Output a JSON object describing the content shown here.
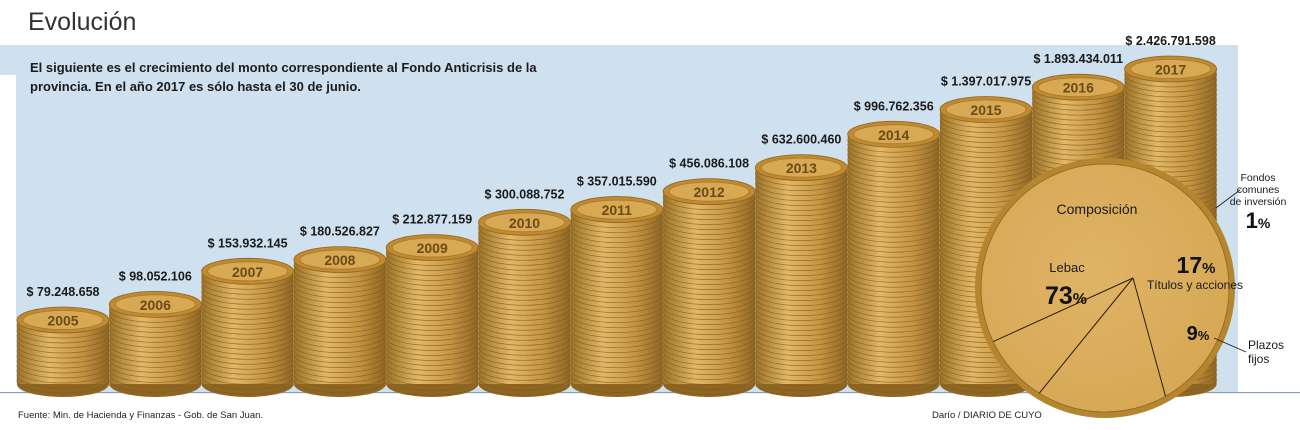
{
  "title": "Evolución",
  "intro": "El siguiente es el crecimiento del monto correspondiente al Fondo Anticrisis de la provincia. En el año 2017 es sólo hasta el 30 de junio.",
  "source": "Fuente: Min. de Hacienda y Finanzas - Gob. de San Juan.",
  "credit": "Darío / DIARIO DE CUYO",
  "colors": {
    "background_panel": "#cfe0ef",
    "coin_face": "#d8a954",
    "coin_rim": "#c08a30",
    "coin_edge": "#b98a3c",
    "pie": "#d6a855"
  },
  "chart_data": [
    {
      "type": "bar",
      "title": "Evolución",
      "categories": [
        "2005",
        "2006",
        "2007",
        "2008",
        "2009",
        "2010",
        "2011",
        "2012",
        "2013",
        "2014",
        "2015",
        "2016",
        "2017"
      ],
      "value_labels": [
        "$ 79.248.658",
        "$ 98.052.106",
        "$ 153.932.145",
        "$ 180.526.827",
        "$ 212.877.159",
        "$ 300.088.752",
        "$ 357.015.590",
        "$ 456.086.108",
        "$ 632.600.460",
        "$ 996.762.356",
        "$ 1.397.017.975",
        "$ 1.893.434.011",
        "$ 2.426.791.598"
      ],
      "values": [
        79248658,
        98052106,
        153932145,
        180526827,
        212877159,
        300088752,
        357015590,
        456086108,
        632600460,
        996762356,
        1397017975,
        1893434011,
        2426791598
      ]
    },
    {
      "type": "pie",
      "title": "Composición",
      "slices": [
        {
          "name": "Lebac",
          "pct_label": "73",
          "value": 73
        },
        {
          "name": "Títulos y acciones",
          "pct_label": "17",
          "value": 17
        },
        {
          "name": "Plazos fijos",
          "pct_label": "9",
          "value": 9
        },
        {
          "name": "Fondos comunes de inversión",
          "pct_label": "1",
          "value": 1
        }
      ],
      "pct_sign": "%"
    }
  ]
}
